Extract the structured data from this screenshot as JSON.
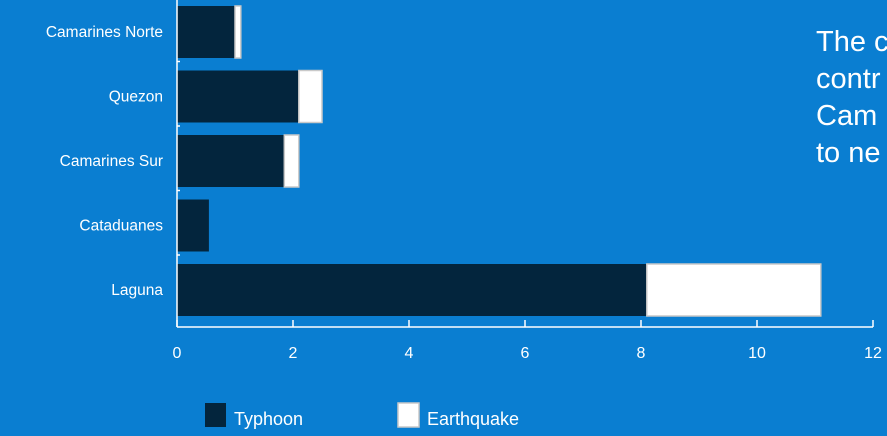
{
  "colors": {
    "background": "#0a7ed1",
    "typhoon": "#03253d",
    "earthquake": "#ffffff",
    "bar_stroke": "#c9c9c9",
    "axis": "#ffffff",
    "text": "#ffffff"
  },
  "side_text": {
    "lines": [
      "The c",
      "contr",
      "Cam",
      "to ne"
    ]
  },
  "chart_data": {
    "type": "bar",
    "orientation": "horizontal",
    "stacked": true,
    "categories": [
      "Camarines Norte",
      "Quezon",
      "Camarines Sur",
      "Cataduanes",
      "Laguna"
    ],
    "series": [
      {
        "name": "Typhoon",
        "color": "#03253d",
        "values": [
          1.0,
          2.1,
          1.85,
          0.55,
          8.1
        ]
      },
      {
        "name": "Earthquake",
        "color": "#ffffff",
        "values": [
          0.1,
          0.4,
          0.25,
          0,
          3.0
        ]
      }
    ],
    "xlim": [
      0,
      12
    ],
    "xticks": [
      "0",
      "2",
      "4",
      "6",
      "8",
      "10",
      "12"
    ],
    "grid": false,
    "legend_position": "bottom-left"
  }
}
